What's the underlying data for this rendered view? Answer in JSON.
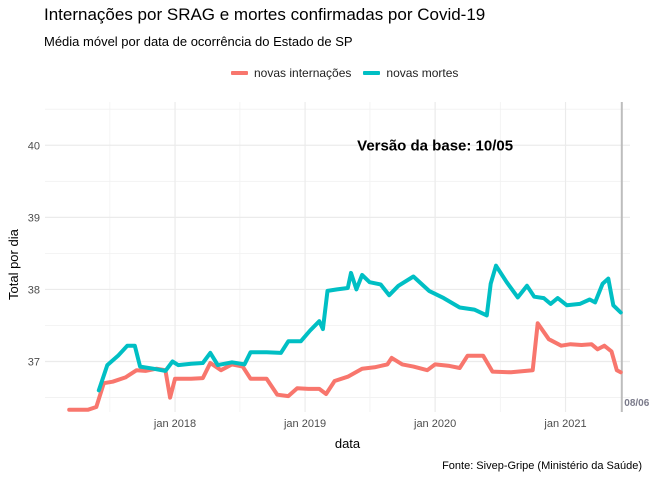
{
  "chart_data": {
    "type": "line",
    "title": "Internações por SRAG e mortes confirmadas por Covid-19",
    "subtitle": "Média móvel por data de ocorrência do Estado de SP",
    "xlabel": "data",
    "ylabel": "Total por dia",
    "caption": "Fonte: Sivep-Gripe (Ministério da Saúde)",
    "annotation": "Versão da base: 10/05",
    "vline_label": "08/06",
    "vline_x": "2021-06-08",
    "x_ticks": [
      "2018-01-01",
      "2019-01-01",
      "2020-01-01",
      "2021-01-01"
    ],
    "x_tick_labels": [
      "jan 2018",
      "jan 2019",
      "jan 2020",
      "jan 2021"
    ],
    "y_ticks": [
      37,
      38,
      39,
      40
    ],
    "xlim": [
      "2017-01-01",
      "2021-07-01"
    ],
    "ylim": [
      36.3,
      40.6
    ],
    "legend_position": "top",
    "grid": true,
    "series": [
      {
        "name": "novas internações",
        "color": "#F8766D",
        "points": [
          [
            "2017-03-10",
            36.33
          ],
          [
            "2017-05-01",
            36.33
          ],
          [
            "2017-05-25",
            36.37
          ],
          [
            "2017-06-15",
            36.7
          ],
          [
            "2017-07-10",
            36.72
          ],
          [
            "2017-08-15",
            36.78
          ],
          [
            "2017-09-15",
            36.88
          ],
          [
            "2017-10-10",
            36.87
          ],
          [
            "2017-11-10",
            36.9
          ],
          [
            "2017-12-05",
            36.88
          ],
          [
            "2017-12-18",
            36.5
          ],
          [
            "2018-01-01",
            36.76
          ],
          [
            "2018-02-15",
            36.76
          ],
          [
            "2018-03-20",
            36.77
          ],
          [
            "2018-04-10",
            36.98
          ],
          [
            "2018-05-10",
            36.88
          ],
          [
            "2018-06-10",
            36.96
          ],
          [
            "2018-07-10",
            36.93
          ],
          [
            "2018-08-01",
            36.76
          ],
          [
            "2018-09-15",
            36.76
          ],
          [
            "2018-10-15",
            36.54
          ],
          [
            "2018-11-15",
            36.52
          ],
          [
            "2018-12-10",
            36.63
          ],
          [
            "2019-01-10",
            36.62
          ],
          [
            "2019-02-10",
            36.62
          ],
          [
            "2019-03-01",
            36.55
          ],
          [
            "2019-03-25",
            36.73
          ],
          [
            "2019-05-01",
            36.79
          ],
          [
            "2019-06-10",
            36.9
          ],
          [
            "2019-07-15",
            36.92
          ],
          [
            "2019-08-20",
            36.96
          ],
          [
            "2019-09-01",
            37.05
          ],
          [
            "2019-10-01",
            36.96
          ],
          [
            "2019-11-01",
            36.93
          ],
          [
            "2019-12-10",
            36.88
          ],
          [
            "2020-01-01",
            36.96
          ],
          [
            "2020-02-10",
            36.94
          ],
          [
            "2020-03-10",
            36.91
          ],
          [
            "2020-04-01",
            37.08
          ],
          [
            "2020-05-15",
            37.08
          ],
          [
            "2020-06-10",
            36.86
          ],
          [
            "2020-08-01",
            36.85
          ],
          [
            "2020-10-01",
            36.88
          ],
          [
            "2020-10-15",
            37.53
          ],
          [
            "2020-11-15",
            37.31
          ],
          [
            "2020-12-20",
            37.22
          ],
          [
            "2021-01-15",
            37.24
          ],
          [
            "2021-02-15",
            37.23
          ],
          [
            "2021-03-15",
            37.24
          ],
          [
            "2021-04-01",
            37.17
          ],
          [
            "2021-04-20",
            37.22
          ],
          [
            "2021-05-10",
            37.14
          ],
          [
            "2021-05-25",
            36.88
          ],
          [
            "2021-06-05",
            36.85
          ]
        ]
      },
      {
        "name": "novas mortes",
        "color": "#00BFC4",
        "points": [
          [
            "2017-06-01",
            36.6
          ],
          [
            "2017-06-25",
            36.95
          ],
          [
            "2017-07-25",
            37.08
          ],
          [
            "2017-08-20",
            37.22
          ],
          [
            "2017-09-10",
            37.22
          ],
          [
            "2017-09-25",
            36.93
          ],
          [
            "2017-11-01",
            36.9
          ],
          [
            "2017-12-05",
            36.87
          ],
          [
            "2017-12-25",
            37.0
          ],
          [
            "2018-01-10",
            36.95
          ],
          [
            "2018-02-15",
            36.97
          ],
          [
            "2018-03-20",
            36.98
          ],
          [
            "2018-04-10",
            37.12
          ],
          [
            "2018-05-01",
            36.95
          ],
          [
            "2018-06-10",
            36.99
          ],
          [
            "2018-07-15",
            36.96
          ],
          [
            "2018-08-01",
            37.13
          ],
          [
            "2018-09-15",
            37.13
          ],
          [
            "2018-10-25",
            37.12
          ],
          [
            "2018-11-15",
            37.28
          ],
          [
            "2018-12-20",
            37.28
          ],
          [
            "2019-01-15",
            37.43
          ],
          [
            "2019-02-10",
            37.56
          ],
          [
            "2019-02-20",
            37.45
          ],
          [
            "2019-03-05",
            37.98
          ],
          [
            "2019-04-01",
            38.0
          ],
          [
            "2019-05-01",
            38.02
          ],
          [
            "2019-05-10",
            38.23
          ],
          [
            "2019-05-25",
            38.0
          ],
          [
            "2019-06-10",
            38.2
          ],
          [
            "2019-07-01",
            38.1
          ],
          [
            "2019-08-01",
            38.07
          ],
          [
            "2019-08-25",
            37.92
          ],
          [
            "2019-09-20",
            38.05
          ],
          [
            "2019-11-01",
            38.18
          ],
          [
            "2019-12-15",
            37.98
          ],
          [
            "2020-01-25",
            37.88
          ],
          [
            "2020-03-10",
            37.75
          ],
          [
            "2020-04-20",
            37.72
          ],
          [
            "2020-05-25",
            37.64
          ],
          [
            "2020-06-05",
            38.08
          ],
          [
            "2020-06-20",
            38.33
          ],
          [
            "2020-07-20",
            38.1
          ],
          [
            "2020-08-20",
            37.89
          ],
          [
            "2020-09-15",
            38.05
          ],
          [
            "2020-10-05",
            37.9
          ],
          [
            "2020-11-01",
            37.88
          ],
          [
            "2020-11-20",
            37.8
          ],
          [
            "2020-12-10",
            37.88
          ],
          [
            "2021-01-05",
            37.78
          ],
          [
            "2021-02-10",
            37.8
          ],
          [
            "2021-03-10",
            37.86
          ],
          [
            "2021-03-25",
            37.82
          ],
          [
            "2021-04-15",
            38.08
          ],
          [
            "2021-05-01",
            38.15
          ],
          [
            "2021-05-15",
            37.78
          ],
          [
            "2021-06-05",
            37.68
          ]
        ]
      }
    ]
  }
}
